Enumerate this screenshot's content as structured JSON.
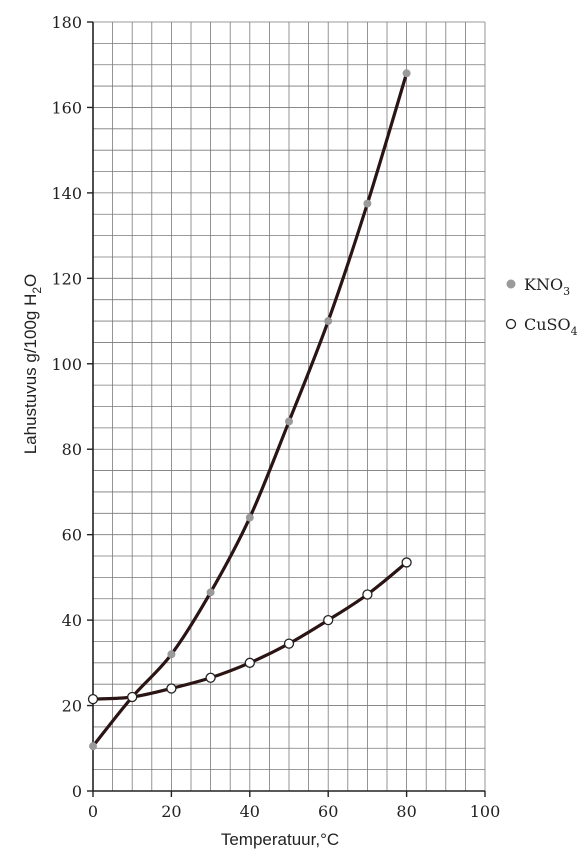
{
  "chart_data": {
    "type": "line",
    "xlabel": "Temperatuur,°C",
    "ylabel_main": "Lahustuvus g/100g H",
    "ylabel_sub": "2",
    "ylabel_tail": "O",
    "xlim": [
      0,
      100
    ],
    "ylim": [
      0,
      180
    ],
    "x_ticks": [
      0,
      20,
      40,
      60,
      80,
      100
    ],
    "y_ticks": [
      0,
      20,
      40,
      60,
      80,
      100,
      120,
      140,
      160,
      180
    ],
    "grid": true,
    "legend_position": "right",
    "series": [
      {
        "name_main": "KNO",
        "name_sub": "3",
        "marker": "filled-circle",
        "marker_color": "#9a9a9a",
        "x": [
          0,
          10,
          20,
          30,
          40,
          50,
          60,
          70,
          80
        ],
        "y": [
          10.5,
          22,
          32,
          46.5,
          64,
          86.5,
          110,
          137.5,
          168
        ]
      },
      {
        "name_main": "CuSO",
        "name_sub": "4",
        "marker": "open-circle",
        "marker_color": "#ffffff",
        "x": [
          0,
          10,
          20,
          30,
          40,
          50,
          60,
          70,
          80
        ],
        "y": [
          21.5,
          22,
          24,
          26.5,
          30,
          34.5,
          40,
          46,
          53.5
        ]
      }
    ],
    "curve_color": "#2a1414"
  }
}
